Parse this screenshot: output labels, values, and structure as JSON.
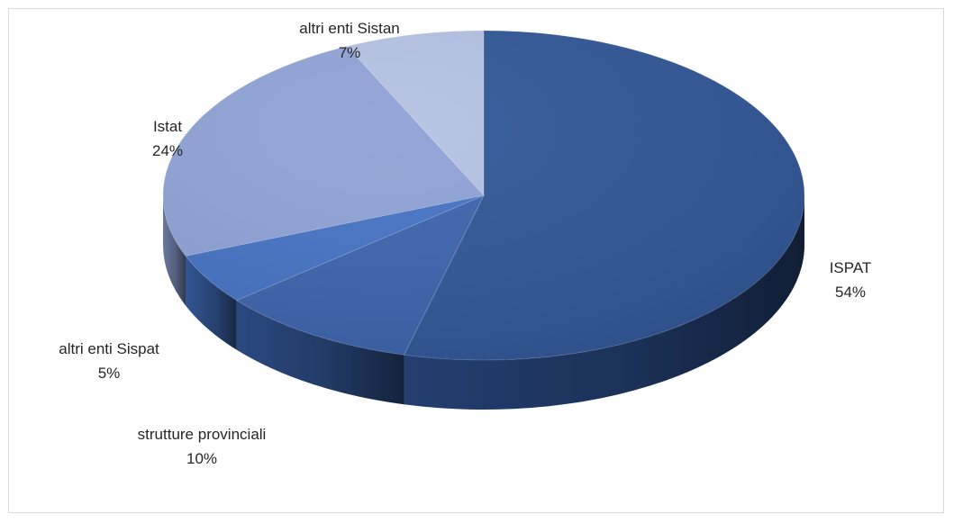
{
  "chart_data": {
    "type": "pie",
    "title": "",
    "slices": [
      {
        "label": "ISPAT",
        "value": 54,
        "value_label": "54%",
        "color": "#2f5597"
      },
      {
        "label": "strutture provinciali",
        "value": 10,
        "value_label": "10%",
        "color": "#3a63ad"
      },
      {
        "label": "altri enti Sispat",
        "value": 5,
        "value_label": "5%",
        "color": "#4472c4"
      },
      {
        "label": "Istat",
        "value": 24,
        "value_label": "24%",
        "color": "#8ea2d6"
      },
      {
        "label": "altri enti Sistan",
        "value": 7,
        "value_label": "7%",
        "color": "#b4c1e3"
      }
    ],
    "legend": false,
    "style": "3d"
  }
}
